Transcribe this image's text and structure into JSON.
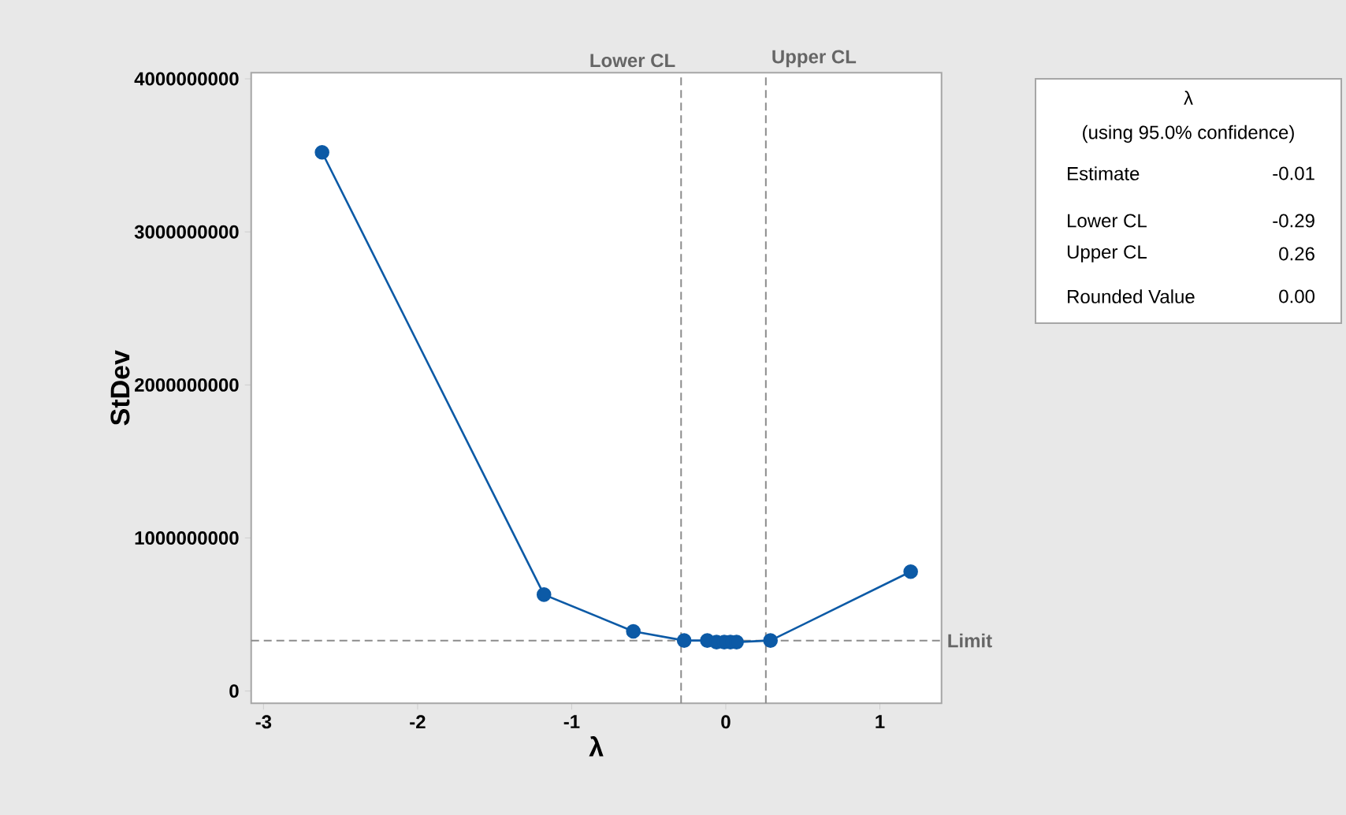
{
  "chart_data": {
    "type": "line",
    "xlabel": "λ",
    "ylabel": "StDev",
    "x": [
      -2.62,
      -1.18,
      -0.6,
      -0.27,
      -0.12,
      -0.06,
      -0.01,
      0.03,
      0.07,
      0.29,
      1.2
    ],
    "values": [
      3520000000,
      630000000,
      390000000,
      330000000,
      330000000,
      320000000,
      320000000,
      320000000,
      320000000,
      330000000,
      780000000
    ],
    "color": "#0c5aa6",
    "marker": "circle",
    "line_style": "solid",
    "xlim": [
      -3.08,
      1.4
    ],
    "ylim": [
      -80000000,
      4040000000
    ],
    "xticks": [
      -3,
      -2,
      -1,
      0,
      1
    ],
    "yticks": [
      0,
      1000000000,
      2000000000,
      3000000000,
      4000000000
    ],
    "ref_lines": [
      {
        "axis": "x",
        "value": -0.29,
        "label": "Lower CL",
        "color": "#8c8c8c",
        "line_style": "dashed"
      },
      {
        "axis": "x",
        "value": 0.26,
        "label": "Upper CL",
        "color": "#8c8c8c",
        "line_style": "dashed"
      },
      {
        "axis": "y",
        "value": 330000000,
        "label": "Limit",
        "color": "#8c8c8c",
        "line_style": "dashed"
      }
    ],
    "annotations": [
      "λ",
      "(using 95.0% confidence)",
      "Estimate",
      "-0.01",
      "Lower CL",
      "-0.29",
      "Upper CL",
      "0.26",
      "Rounded Value",
      "0.00"
    ]
  }
}
